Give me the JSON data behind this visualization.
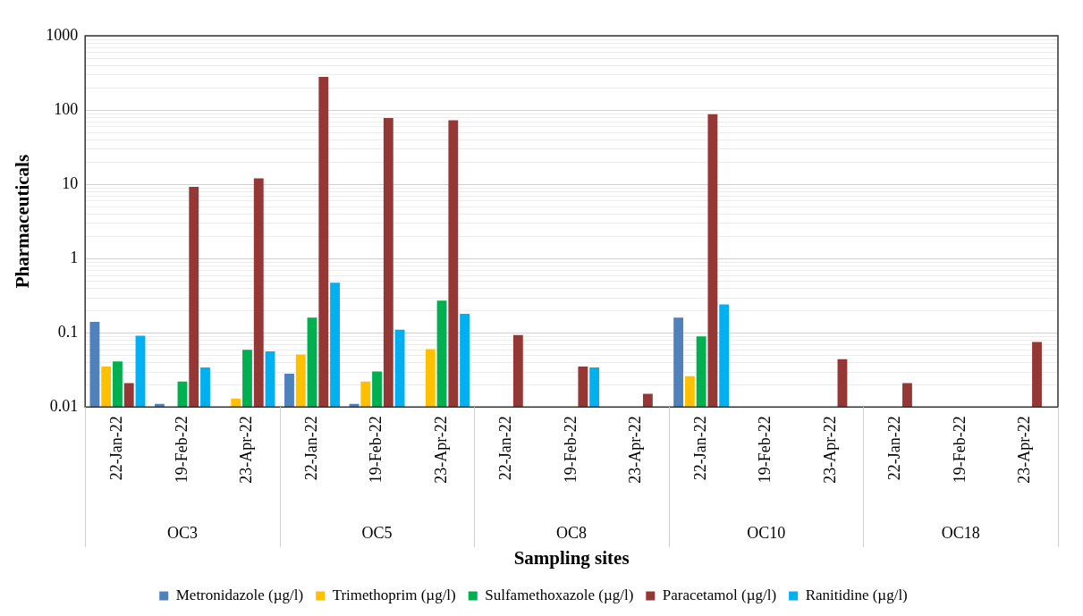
{
  "chart_data": {
    "type": "bar",
    "xlabel": "Sampling sites",
    "ylabel": "Pharmaceuticals",
    "categories": [
      "22-Jan-22",
      "19-Feb-22",
      "23-Apr-22",
      "22-Jan-22",
      "19-Feb-22",
      "23-Apr-22",
      "22-Jan-22",
      "19-Feb-22",
      "23-Apr-22",
      "22-Jan-22",
      "19-Feb-22",
      "23-Apr-22",
      "22-Jan-22",
      "19-Feb-22",
      "23-Apr-22"
    ],
    "annotations": [
      "OC3",
      "OC5",
      "OC8",
      "OC10",
      "OC18"
    ],
    "series": [
      {
        "name": "Metronidazole (µg/l)",
        "color": "#4f81bd",
        "values": [
          0.14,
          0.011,
          null,
          0.028,
          0.011,
          null,
          null,
          null,
          null,
          0.16,
          null,
          null,
          null,
          null,
          null
        ]
      },
      {
        "name": "Trimethoprim (µg/l)",
        "color": "#ffc000",
        "values": [
          0.035,
          null,
          0.013,
          0.051,
          0.022,
          0.06,
          null,
          null,
          null,
          0.026,
          null,
          null,
          null,
          null,
          null
        ]
      },
      {
        "name": "Sulfamethoxazole (µg/l)",
        "color": "#00b050",
        "values": [
          0.041,
          0.022,
          0.059,
          0.16,
          0.03,
          0.27,
          null,
          null,
          null,
          0.089,
          null,
          null,
          null,
          null,
          null
        ]
      },
      {
        "name": "Paracetamol (µg/l)",
        "color": "#953735",
        "values": [
          0.021,
          9.2,
          12,
          280,
          78,
          73,
          0.093,
          0.035,
          0.015,
          88,
          null,
          0.044,
          0.021,
          null,
          0.075
        ]
      },
      {
        "name": "Ranitidine (µg/l)",
        "color": "#00b0f0",
        "values": [
          0.091,
          0.034,
          0.056,
          0.47,
          0.11,
          0.18,
          null,
          0.034,
          null,
          0.24,
          null,
          null,
          null,
          null,
          null
        ]
      }
    ],
    "log": "y",
    "ylim": [
      0.01,
      1000
    ],
    "yticks": [
      0.01,
      0.1,
      1,
      10,
      100,
      1000
    ],
    "grid": "y",
    "legend": "bottom"
  }
}
